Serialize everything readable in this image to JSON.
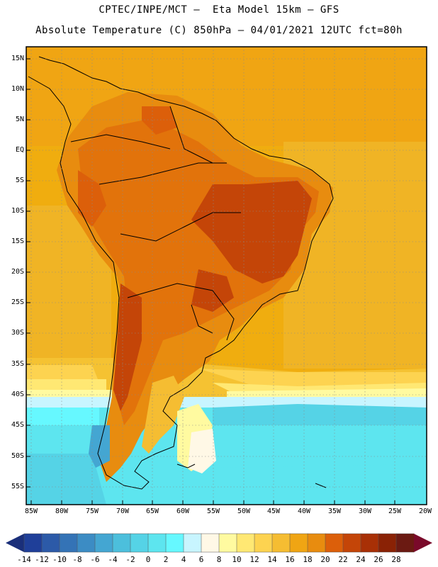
{
  "header": {
    "line1": "CPTEC/INPE/MCT –  Eta Model 15km – GFS",
    "line2": "Absolute Temperature (C) 850hPa – 04/01/2021 12UTC fct=80h"
  },
  "map": {
    "region": "South America",
    "lat_labels": [
      "15N",
      "10N",
      "5N",
      "EQ",
      "5S",
      "10S",
      "15S",
      "20S",
      "25S",
      "30S",
      "35S",
      "40S",
      "45S",
      "50S",
      "55S"
    ],
    "lon_labels": [
      "85W",
      "80W",
      "75W",
      "70W",
      "65W",
      "60W",
      "55W",
      "50W",
      "45W",
      "40W",
      "35W",
      "30W",
      "25W",
      "20W"
    ]
  },
  "colorbar": {
    "labels": [
      "-14",
      "-12",
      "-10",
      "-8",
      "-6",
      "-4",
      "-2",
      "0",
      "2",
      "4",
      "6",
      "8",
      "10",
      "12",
      "14",
      "16",
      "18",
      "20",
      "22",
      "24",
      "26",
      "28"
    ],
    "colors": [
      "#1f3f99",
      "#2c5aa8",
      "#3473b6",
      "#3c8cc4",
      "#44a6d2",
      "#4cbfdc",
      "#55d3e6",
      "#5de5ef",
      "#66f8ff",
      "#c8f5ff",
      "#fff8e6",
      "#fffaa0",
      "#ffe873",
      "#fdd350",
      "#f5bd32",
      "#f0a513",
      "#e88c0f",
      "#dc5f0a",
      "#c44508",
      "#a83006",
      "#8a2205",
      "#6b1a12"
    ],
    "low_arrow_color": "#1a2f7a",
    "high_arrow_color": "#7a0a2a"
  }
}
